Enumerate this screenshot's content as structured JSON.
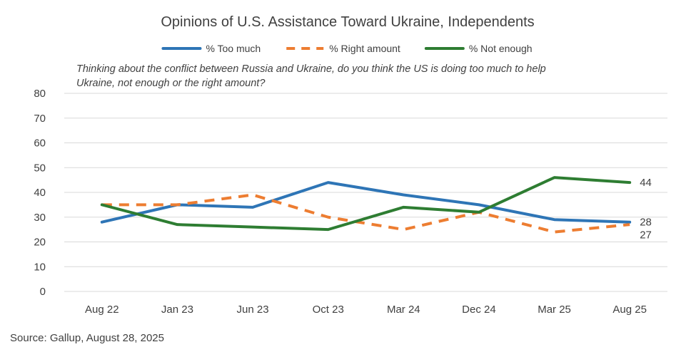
{
  "chart_data": {
    "type": "line",
    "title": "Opinions of U.S. Assistance Toward Ukraine, Independents",
    "subtitle_lines": [
      "Thinking about the conflict between Russia and Ukraine, do you think the US is doing too much to help",
      "Ukraine, not enough or the right amount?"
    ],
    "categories": [
      "Aug 22",
      "Jan 23",
      "Jun 23",
      "Oct 23",
      "Mar 24",
      "Dec 24",
      "Mar 25",
      "Aug 25"
    ],
    "ylim": [
      0,
      80
    ],
    "yticks": [
      0,
      10,
      20,
      30,
      40,
      50,
      60,
      70,
      80
    ],
    "grid": true,
    "legend_position": "top",
    "series": [
      {
        "name": "% Too much",
        "color": "#2e75b6",
        "dashed": false,
        "values": [
          28,
          35,
          34,
          44,
          39,
          35,
          29,
          28
        ],
        "end_label": "28"
      },
      {
        "name": "% Right amount",
        "color": "#ed7d31",
        "dashed": true,
        "values": [
          35,
          35,
          39,
          30,
          25,
          32,
          24,
          27
        ],
        "end_label": "27"
      },
      {
        "name": "% Not enough",
        "color": "#2e7d32",
        "dashed": false,
        "values": [
          35,
          27,
          26,
          25,
          34,
          32,
          46,
          44
        ],
        "end_label": "44"
      }
    ],
    "source": "Source: Gallup, August 28, 2025"
  }
}
